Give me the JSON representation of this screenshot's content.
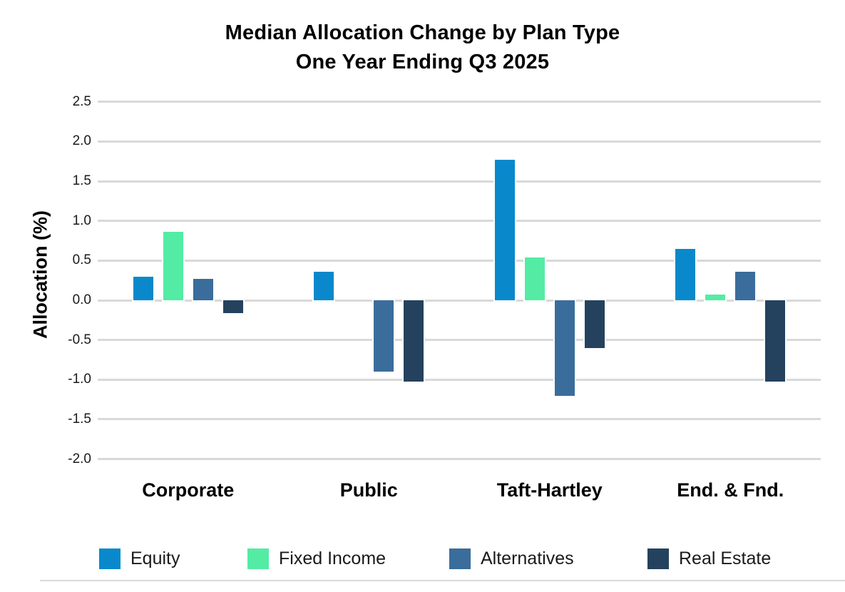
{
  "chart_data": {
    "type": "bar",
    "title": "Median Allocation Change by Plan Type",
    "subtitle": "One Year Ending Q3 2025",
    "ylabel": "Allocation (%)",
    "xlabel": "",
    "categories": [
      "Corporate",
      "Public",
      "Taft-Hartley",
      "End. & Fnd."
    ],
    "series": [
      {
        "name": "Equity",
        "color": "#0989CB",
        "values": [
          0.3,
          0.36,
          1.77,
          0.65
        ]
      },
      {
        "name": "Fixed Income",
        "color": "#54ECA4",
        "values": [
          0.86,
          0.0,
          0.54,
          0.07
        ]
      },
      {
        "name": "Alternatives",
        "color": "#3A6D9C",
        "values": [
          0.27,
          -0.9,
          -1.2,
          0.36
        ]
      },
      {
        "name": "Real Estate",
        "color": "#24425E",
        "values": [
          -0.16,
          -1.02,
          -0.6,
          -1.02
        ]
      }
    ],
    "y_ticks": [
      "2.5",
      "2.0",
      "1.5",
      "1.0",
      "0.5",
      "0.0",
      "-0.5",
      "-1.0",
      "-1.5",
      "-2.0"
    ],
    "ylim": [
      -2.0,
      2.5
    ],
    "grid": true,
    "legend_position": "bottom"
  },
  "colors": {
    "gridline": "#D9D9D9",
    "divider": "#D9D9D9",
    "title_text": "#000000",
    "tick_text": "#1A1A1A",
    "background": "#FFFFFF"
  }
}
